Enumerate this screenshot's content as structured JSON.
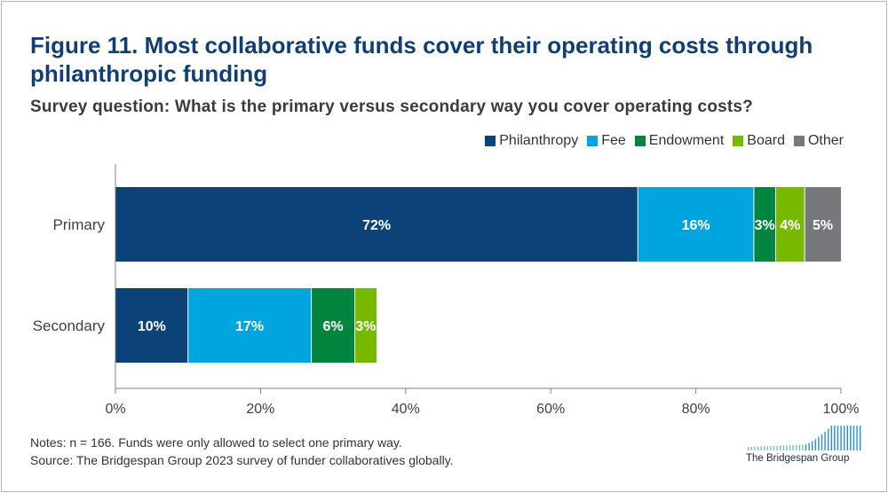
{
  "title": "Figure 11. Most collaborative funds cover their operating costs through philanthropic funding",
  "subtitle": "Survey question: What is the primary versus secondary way you cover operating costs?",
  "legend": [
    {
      "label": "Philanthropy",
      "color": "#0b4277"
    },
    {
      "label": "Fee",
      "color": "#00a5e0"
    },
    {
      "label": "Endowment",
      "color": "#00853f"
    },
    {
      "label": "Board",
      "color": "#77b800"
    },
    {
      "label": "Other",
      "color": "#76787b"
    }
  ],
  "notes": {
    "line1": "Notes: n = 166. Funds were only allowed to select one primary way.",
    "line2": "Source: The Bridgespan Group 2023 survey of funder collaboratives globally."
  },
  "brand": {
    "name": "The Bridgespan Group"
  },
  "chart_data": {
    "type": "bar",
    "orientation": "horizontal",
    "stacked": true,
    "categories": [
      "Primary",
      "Secondary"
    ],
    "series": [
      {
        "name": "Philanthropy",
        "color": "#0b4277",
        "values": [
          72,
          10
        ],
        "labels": [
          "72%",
          "10%"
        ]
      },
      {
        "name": "Fee",
        "color": "#00a5e0",
        "values": [
          16,
          17
        ],
        "labels": [
          "16%",
          "17%"
        ]
      },
      {
        "name": "Endowment",
        "color": "#00853f",
        "values": [
          3,
          6
        ],
        "labels": [
          "3%",
          "6%"
        ]
      },
      {
        "name": "Board",
        "color": "#77b800",
        "values": [
          4,
          3
        ],
        "labels": [
          "4%",
          "3%"
        ]
      },
      {
        "name": "Other",
        "color": "#76787b",
        "values": [
          5,
          0
        ],
        "labels": [
          "5%",
          ""
        ]
      }
    ],
    "xlim": [
      0,
      100
    ],
    "xticks": [
      0,
      20,
      40,
      60,
      80,
      100
    ],
    "xtick_labels": [
      "0%",
      "20%",
      "40%",
      "60%",
      "80%",
      "100%"
    ],
    "grid": false,
    "legend_position": "top-right"
  }
}
